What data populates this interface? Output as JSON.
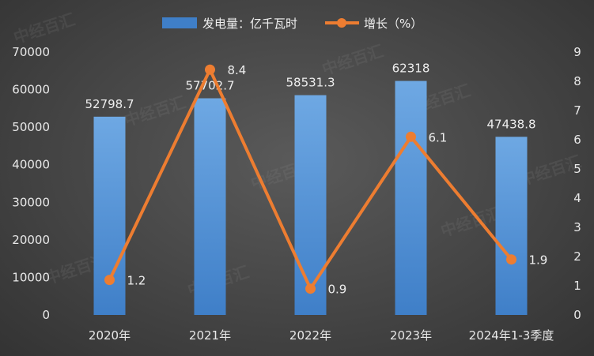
{
  "legend": {
    "bar_label": "发电量：亿千瓦时",
    "line_label": "增长（%）"
  },
  "watermark": "中经百汇",
  "colors": {
    "bar_top": "#6ea8e3",
    "bar_bottom": "#3f7fc8",
    "line": "#ed7d31",
    "text": "#e8e8e8"
  },
  "chart_data": {
    "type": "bar",
    "categories": [
      "2020年",
      "2021年",
      "2022年",
      "2023年",
      "2024年1-3季度"
    ],
    "series": [
      {
        "name": "发电量：亿千瓦时",
        "type": "bar",
        "axis": "left",
        "values": [
          52798.7,
          57702.7,
          58531.3,
          62318,
          47438.8
        ],
        "labels": [
          "52798.7",
          "57702.7",
          "58531.3",
          "62318",
          "47438.8"
        ]
      },
      {
        "name": "增长（%）",
        "type": "line",
        "axis": "right",
        "values": [
          1.2,
          8.4,
          0.9,
          6.1,
          1.9
        ],
        "labels": [
          "1.2",
          "8.4",
          "0.9",
          "6.1",
          "1.9"
        ]
      }
    ],
    "y_left": {
      "ylim": [
        0,
        70000
      ],
      "ticks": [
        "0",
        "10000",
        "20000",
        "30000",
        "40000",
        "50000",
        "60000",
        "70000"
      ]
    },
    "y_right": {
      "ylim": [
        0,
        9
      ],
      "ticks": [
        "0",
        "1",
        "2",
        "3",
        "4",
        "5",
        "6",
        "7",
        "8",
        "9"
      ]
    },
    "grid": false,
    "legend_position": "top-center"
  }
}
